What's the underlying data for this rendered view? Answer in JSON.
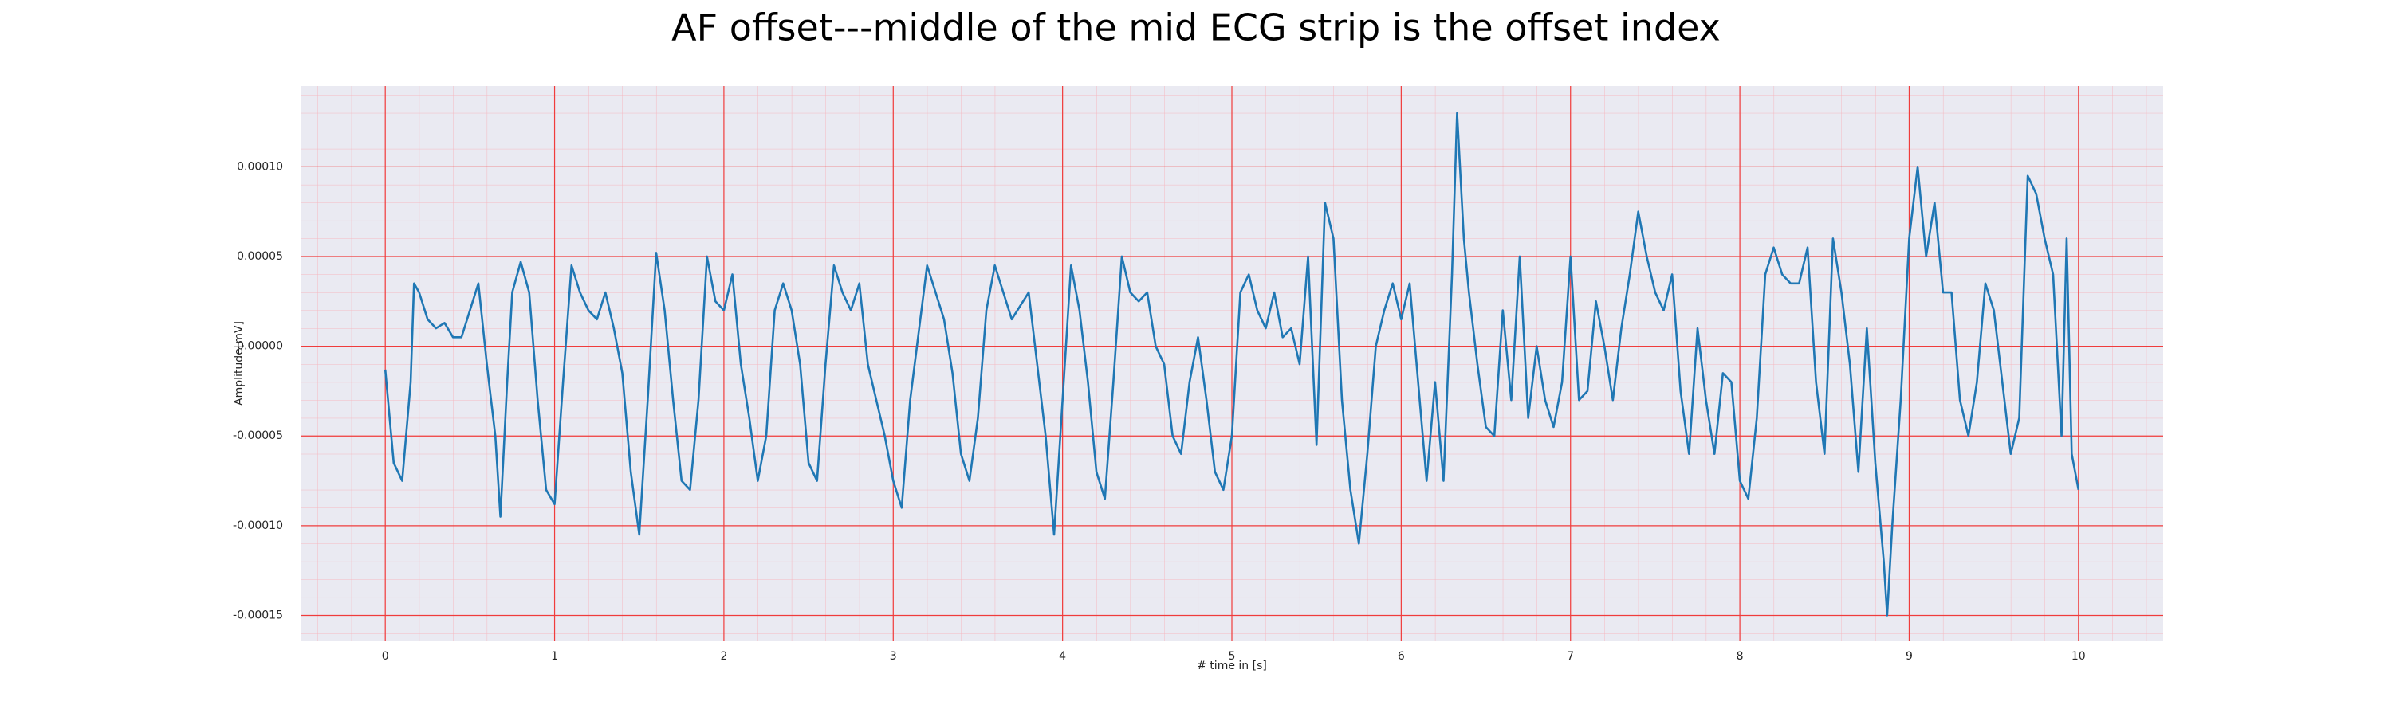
{
  "chart_data": {
    "type": "line",
    "title": "AF offset---middle of the mid ECG strip is the offset index",
    "xlabel": "# time in [s]",
    "ylabel": "Amplitude[mV]",
    "color": "#1f77b4",
    "grid": true,
    "minor_grid": true,
    "xlim": [
      -0.5,
      10.5
    ],
    "xticks": [
      0,
      1,
      2,
      3,
      4,
      5,
      6,
      7,
      8,
      9,
      10
    ],
    "ylim": [
      -0.000164,
      0.000145
    ],
    "yticks": [
      {
        "value": -0.00015,
        "label": "-0.00015"
      },
      {
        "value": -0.0001,
        "label": "-0.00010"
      },
      {
        "value": -5e-05,
        "label": "-0.00005"
      },
      {
        "value": 0,
        "label": "0.00000"
      },
      {
        "value": 5e-05,
        "label": "0.00005"
      },
      {
        "value": 0.0001,
        "label": "0.00010"
      }
    ],
    "x": [
      0,
      0.05,
      0.1,
      0.15,
      0.17,
      0.2,
      0.25,
      0.3,
      0.35,
      0.4,
      0.45,
      0.5,
      0.55,
      0.6,
      0.65,
      0.68,
      0.72,
      0.75,
      0.8,
      0.85,
      0.9,
      0.95,
      1.0,
      1.05,
      1.1,
      1.15,
      1.2,
      1.25,
      1.3,
      1.35,
      1.4,
      1.45,
      1.5,
      1.55,
      1.6,
      1.65,
      1.7,
      1.75,
      1.8,
      1.85,
      1.9,
      1.95,
      2.0,
      2.05,
      2.1,
      2.15,
      2.2,
      2.25,
      2.3,
      2.35,
      2.4,
      2.45,
      2.5,
      2.55,
      2.6,
      2.65,
      2.7,
      2.75,
      2.8,
      2.85,
      2.9,
      2.95,
      3.0,
      3.05,
      3.1,
      3.2,
      3.25,
      3.3,
      3.35,
      3.4,
      3.45,
      3.5,
      3.55,
      3.6,
      3.65,
      3.7,
      3.8,
      3.85,
      3.9,
      3.95,
      4.0,
      4.05,
      4.1,
      4.15,
      4.2,
      4.25,
      4.3,
      4.35,
      4.4,
      4.45,
      4.5,
      4.55,
      4.6,
      4.65,
      4.7,
      4.75,
      4.8,
      4.85,
      4.9,
      4.95,
      5.0,
      5.05,
      5.1,
      5.15,
      5.2,
      5.25,
      5.3,
      5.35,
      5.4,
      5.45,
      5.5,
      5.55,
      5.6,
      5.65,
      5.7,
      5.75,
      5.8,
      5.85,
      5.9,
      5.95,
      6.0,
      6.05,
      6.1,
      6.15,
      6.2,
      6.25,
      6.3,
      6.33,
      6.37,
      6.4,
      6.45,
      6.5,
      6.55,
      6.6,
      6.65,
      6.7,
      6.75,
      6.8,
      6.85,
      6.9,
      6.95,
      7.0,
      7.05,
      7.1,
      7.15,
      7.2,
      7.25,
      7.3,
      7.35,
      7.4,
      7.45,
      7.5,
      7.55,
      7.6,
      7.65,
      7.7,
      7.75,
      7.8,
      7.85,
      7.9,
      7.95,
      8.0,
      8.05,
      8.1,
      8.15,
      8.2,
      8.25,
      8.3,
      8.35,
      8.4,
      8.45,
      8.5,
      8.55,
      8.6,
      8.65,
      8.7,
      8.75,
      8.8,
      8.85,
      8.87,
      8.9,
      8.95,
      9.0,
      9.05,
      9.1,
      9.15,
      9.2,
      9.25,
      9.3,
      9.35,
      9.4,
      9.45,
      9.5,
      9.55,
      9.6,
      9.65,
      9.7,
      9.75,
      9.8,
      9.85,
      9.9,
      9.93,
      9.96,
      10.0
    ],
    "values": [
      -1.3e-05,
      -6.5e-05,
      -7.5e-05,
      -2e-05,
      3.5e-05,
      3e-05,
      1.5e-05,
      1e-05,
      1.3e-05,
      5e-06,
      5e-06,
      2e-05,
      3.5e-05,
      -1e-05,
      -5e-05,
      -9.5e-05,
      -2e-05,
      3e-05,
      4.7e-05,
      3e-05,
      -3e-05,
      -8e-05,
      -8.8e-05,
      -2e-05,
      4.5e-05,
      3e-05,
      2e-05,
      1.5e-05,
      3e-05,
      1e-05,
      -1.5e-05,
      -7e-05,
      -0.000105,
      -3e-05,
      5.2e-05,
      2e-05,
      -3e-05,
      -7.5e-05,
      -8e-05,
      -3e-05,
      5e-05,
      2.5e-05,
      2e-05,
      4e-05,
      -1e-05,
      -4e-05,
      -7.5e-05,
      -5e-05,
      2e-05,
      3.5e-05,
      2e-05,
      -1e-05,
      -6.5e-05,
      -7.5e-05,
      -1e-05,
      4.5e-05,
      3e-05,
      2e-05,
      3.5e-05,
      -1e-05,
      -3e-05,
      -5e-05,
      -7.5e-05,
      -9e-05,
      -3e-05,
      4.5e-05,
      3e-05,
      1.5e-05,
      -1.5e-05,
      -6e-05,
      -7.5e-05,
      -4e-05,
      2e-05,
      4.5e-05,
      3e-05,
      1.5e-05,
      3e-05,
      -1e-05,
      -5e-05,
      -0.000105,
      -3e-05,
      4.5e-05,
      2e-05,
      -2e-05,
      -7e-05,
      -8.5e-05,
      -2e-05,
      5e-05,
      3e-05,
      2.5e-05,
      3e-05,
      0,
      -1e-05,
      -5e-05,
      -6e-05,
      -2e-05,
      5e-06,
      -3e-05,
      -7e-05,
      -8e-05,
      -5e-05,
      3e-05,
      4e-05,
      2e-05,
      1e-05,
      3e-05,
      5e-06,
      1e-05,
      -1e-05,
      5e-05,
      -5.5e-05,
      8e-05,
      6e-05,
      -3e-05,
      -8e-05,
      -0.00011,
      -6e-05,
      0,
      2e-05,
      3.5e-05,
      1.5e-05,
      3.5e-05,
      -2e-05,
      -7.5e-05,
      -2e-05,
      -7.5e-05,
      4e-05,
      0.00013,
      6e-05,
      3e-05,
      -1e-05,
      -4.5e-05,
      -5e-05,
      2e-05,
      -3e-05,
      5e-05,
      -4e-05,
      0,
      -3e-05,
      -4.5e-05,
      -2e-05,
      5e-05,
      -3e-05,
      -2.5e-05,
      2.5e-05,
      0,
      -3e-05,
      1e-05,
      4e-05,
      7.5e-05,
      5e-05,
      3e-05,
      2e-05,
      4e-05,
      -2.5e-05,
      -6e-05,
      1e-05,
      -3e-05,
      -6e-05,
      -1.5e-05,
      -2e-05,
      -7.5e-05,
      -8.5e-05,
      -4e-05,
      4e-05,
      5.5e-05,
      4e-05,
      3.5e-05,
      3.5e-05,
      5.5e-05,
      -2e-05,
      -6e-05,
      6e-05,
      3e-05,
      -1e-05,
      -7e-05,
      1e-05,
      -6.5e-05,
      -0.00012,
      -0.00015,
      -0.0001,
      -3e-05,
      6e-05,
      0.0001,
      5e-05,
      8e-05,
      3e-05,
      3e-05,
      -3e-05,
      -5e-05,
      -2e-05,
      3.5e-05,
      2e-05,
      -2e-05,
      -6e-05,
      -4e-05,
      9.5e-05,
      8.5e-05,
      6e-05,
      4e-05,
      -5e-05,
      6e-05,
      -6e-05,
      -8e-05
    ]
  }
}
